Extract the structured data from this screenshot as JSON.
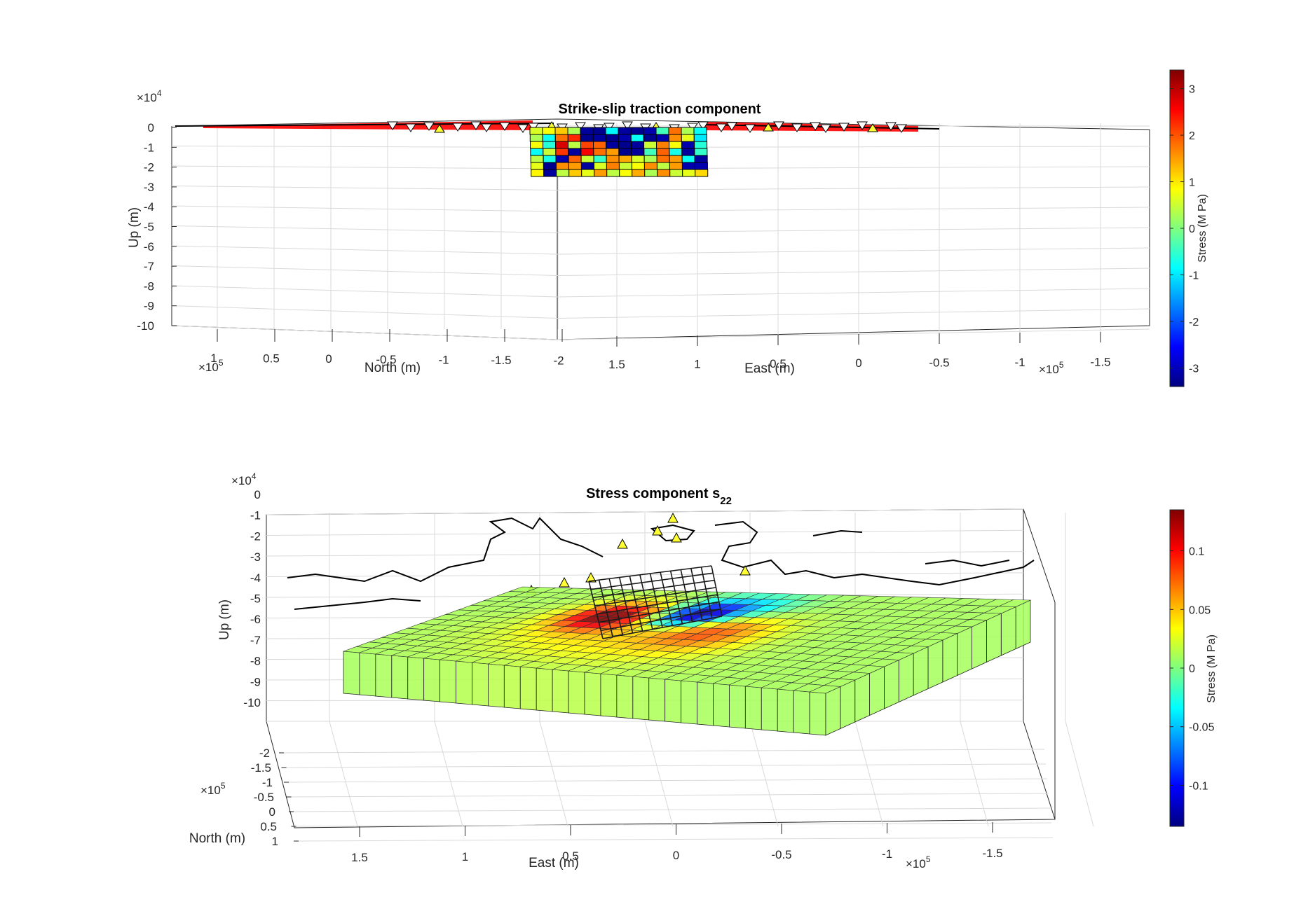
{
  "figure": {
    "panels": [
      {
        "title": "Strike-slip traction component",
        "title_sub": "",
        "zlabel": "Up (m)",
        "north_label": "North (m)",
        "east_label": "East (m)",
        "z_exponent": "×10",
        "z_exponent_power": "4",
        "north_exponent": "×10",
        "north_exponent_power": "5",
        "east_exponent": "×10",
        "east_exponent_power": "5",
        "z_ticks": [
          "0",
          "-1",
          "-2",
          "-3",
          "-4",
          "-5",
          "-6",
          "-7",
          "-8",
          "-9",
          "-10"
        ],
        "north_ticks": [
          "1",
          "0.5",
          "0",
          "-0.5",
          "-1",
          "-1.5",
          "-2"
        ],
        "east_ticks": [
          "1.5",
          "1",
          "0.5",
          "0",
          "-0.5",
          "-1",
          "-1.5"
        ],
        "colorbar": {
          "label": "Stress (M Pa)",
          "ticks": [
            "3",
            "2",
            "1",
            "0",
            "-1",
            "-2",
            "-3"
          ],
          "range": [
            -3.4,
            3.4
          ],
          "colormap": "jet"
        }
      },
      {
        "title": "Stress component s",
        "title_sub": "22",
        "zlabel": "Up (m)",
        "north_label": "North (m)",
        "east_label": "East (m)",
        "z_exponent": "×10",
        "z_exponent_power": "4",
        "north_exponent": "×10",
        "north_exponent_power": "5",
        "east_exponent": "×10",
        "east_exponent_power": "5",
        "z_ticks": [
          "0",
          "-1",
          "-2",
          "-3",
          "-4",
          "-5",
          "-6",
          "-7",
          "-8",
          "-9",
          "-10"
        ],
        "north_ticks": [
          "-2",
          "-1.5",
          "-1",
          "-0.5",
          "0",
          "0.5",
          "1"
        ],
        "east_ticks": [
          "1.5",
          "1",
          "0.5",
          "0",
          "-0.5",
          "-1",
          "-1.5"
        ],
        "colorbar": {
          "label": "Stress (M Pa)",
          "ticks": [
            "0.1",
            "0.05",
            "0",
            "-0.05",
            "-0.1"
          ],
          "range": [
            -0.135,
            0.135
          ],
          "colormap": "jet"
        }
      }
    ]
  },
  "chart_data": [
    {
      "type": "heatmap",
      "title": "Strike-slip traction component",
      "xlabel": "East (m)",
      "ylabel": "North (m)",
      "zlabel": "Up (m)",
      "zlim": [
        -100000,
        0
      ],
      "xlim": [
        -170000,
        170000
      ],
      "ylim": [
        -200000,
        100000
      ],
      "colorbar_label": "Stress (M Pa)",
      "clim": [
        -3.4,
        3.4
      ],
      "fault_patch_grid": {
        "rows": 7,
        "cols": 14
      },
      "values": [
        [
          0.6,
          0.8,
          1.2,
          0.3,
          -3.2,
          -3.3,
          -0.9,
          -3.2,
          -3.3,
          -3.1,
          -0.4,
          1.8,
          0.3,
          -0.8
        ],
        [
          0.3,
          -0.8,
          1.8,
          2.3,
          -3.3,
          -3.2,
          -3.3,
          -3.1,
          -0.8,
          -3.3,
          -3.1,
          1.6,
          0.7,
          -1.0
        ],
        [
          0.8,
          -0.6,
          2.8,
          0.4,
          2.1,
          1.9,
          -3.2,
          -3.3,
          -3.2,
          0.5,
          1.7,
          0.8,
          -3.1,
          -0.6
        ],
        [
          -0.8,
          0.5,
          2.2,
          -3.2,
          2.6,
          1.8,
          1.5,
          -3.3,
          -3.2,
          -0.4,
          1.9,
          -0.7,
          -3.2,
          -0.5
        ],
        [
          0.4,
          -0.7,
          -3.1,
          1.9,
          0.5,
          -0.5,
          1.6,
          1.4,
          0.6,
          0.3,
          1.8,
          1.5,
          -0.8,
          -3.2
        ],
        [
          0.7,
          -3.3,
          1.6,
          1.5,
          -3.2,
          0.6,
          1.7,
          0.5,
          0.8,
          1.6,
          0.4,
          1.5,
          -3.1,
          -3.1
        ],
        [
          0.9,
          -3.2,
          0.4,
          1.2,
          0.7,
          1.5,
          0.4,
          0.8,
          1.4,
          0.3,
          1.6,
          0.5,
          0.7,
          1.1
        ]
      ],
      "grid": true
    },
    {
      "type": "heatmap",
      "title": "Stress component s22",
      "xlabel": "East (m)",
      "ylabel": "North (m)",
      "zlabel": "Up (m)",
      "zlim": [
        -100000,
        0
      ],
      "xlim": [
        -170000,
        170000
      ],
      "ylim": [
        -200000,
        100000
      ],
      "colorbar_label": "Stress (M Pa)",
      "clim": [
        -0.135,
        0.135
      ],
      "grid": true
    }
  ]
}
